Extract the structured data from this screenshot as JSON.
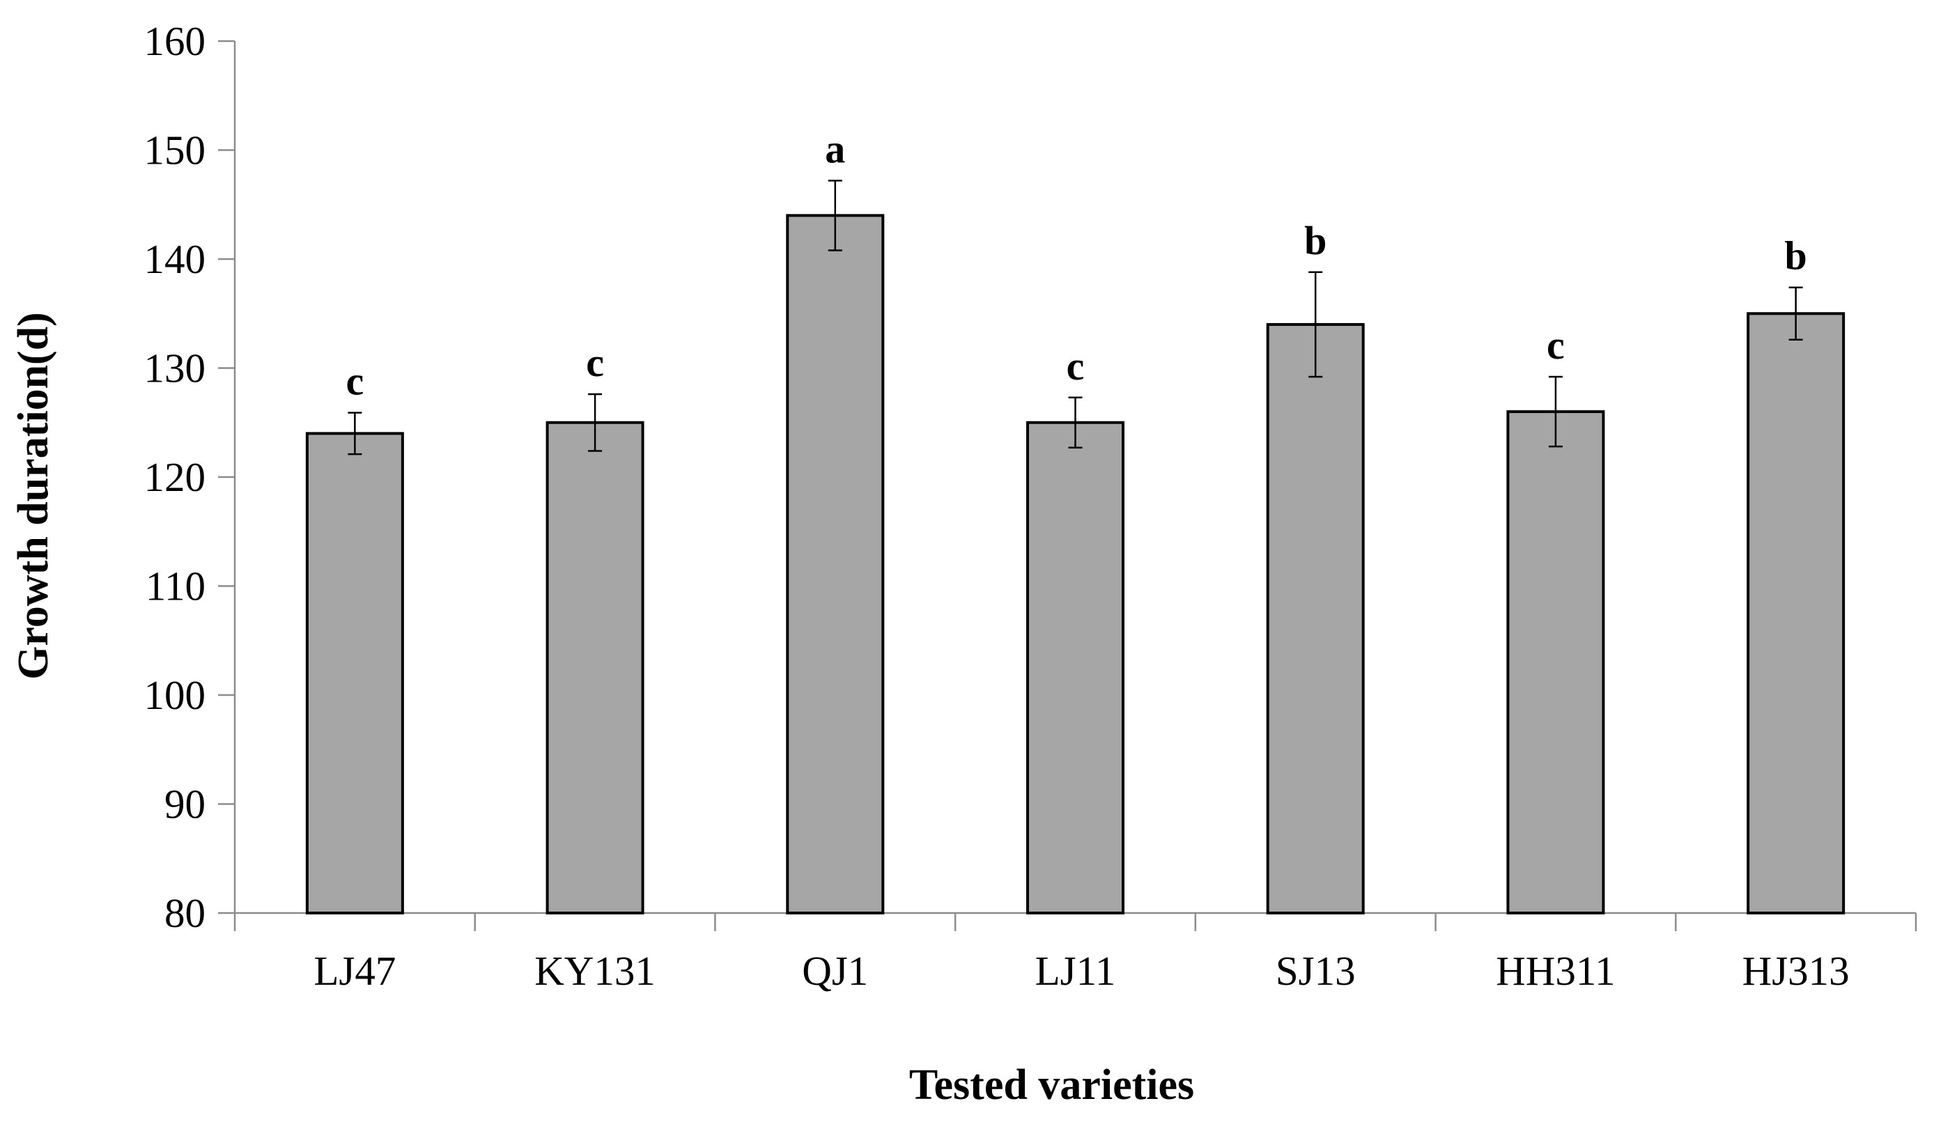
{
  "chart_data": {
    "type": "bar",
    "title": "",
    "xlabel": "Tested varieties",
    "ylabel": "Growth duration(d)",
    "ylim": [
      80,
      160
    ],
    "yticks": [
      80,
      90,
      100,
      110,
      120,
      130,
      140,
      150,
      160
    ],
    "ytick_labels": [
      "80",
      "90",
      "100",
      "110",
      "120",
      "130",
      "140",
      "150",
      "160"
    ],
    "categories": [
      "LJ47",
      "KY131",
      "QJ1",
      "LJ11",
      "SJ13",
      "HH311",
      "HJ313"
    ],
    "values": [
      124,
      125,
      144,
      125,
      134,
      126,
      135
    ],
    "error_bars": [
      1.9,
      2.6,
      3.2,
      2.3,
      4.8,
      3.2,
      2.4
    ],
    "significance_letters": [
      "c",
      "c",
      "a",
      "c",
      "b",
      "c",
      "b"
    ],
    "bar_color": "#a6a6a6",
    "bar_edge_color": "#000000",
    "grid": false,
    "legend": "none"
  }
}
